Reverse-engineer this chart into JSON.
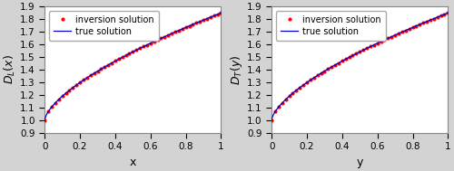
{
  "xlabel_left": "x",
  "xlabel_right": "y",
  "ylabel_left": "D_L(x)",
  "ylabel_right": "D_T(y)",
  "xlim": [
    0,
    1
  ],
  "ylim": [
    0.9,
    1.9
  ],
  "yticks": [
    0.9,
    1.0,
    1.1,
    1.2,
    1.3,
    1.4,
    1.5,
    1.6,
    1.7,
    1.8,
    1.9
  ],
  "xticks": [
    0,
    0.2,
    0.4,
    0.6,
    0.8,
    1.0
  ],
  "n_points_line": 300,
  "n_points_dots": 51,
  "true_color": "#0000cc",
  "inversion_color": "#ff0000",
  "legend_true": "true solution",
  "legend_inversion": "inversion solution",
  "line_width": 0.9,
  "dot_size": 3.0,
  "figsize": [
    5.0,
    1.89
  ],
  "dpi": 100,
  "fig_facecolor": "#d3d3d3",
  "axes_facecolor": "#ffffff",
  "alpha_coeff": 0.615,
  "power_exp": 0.7
}
